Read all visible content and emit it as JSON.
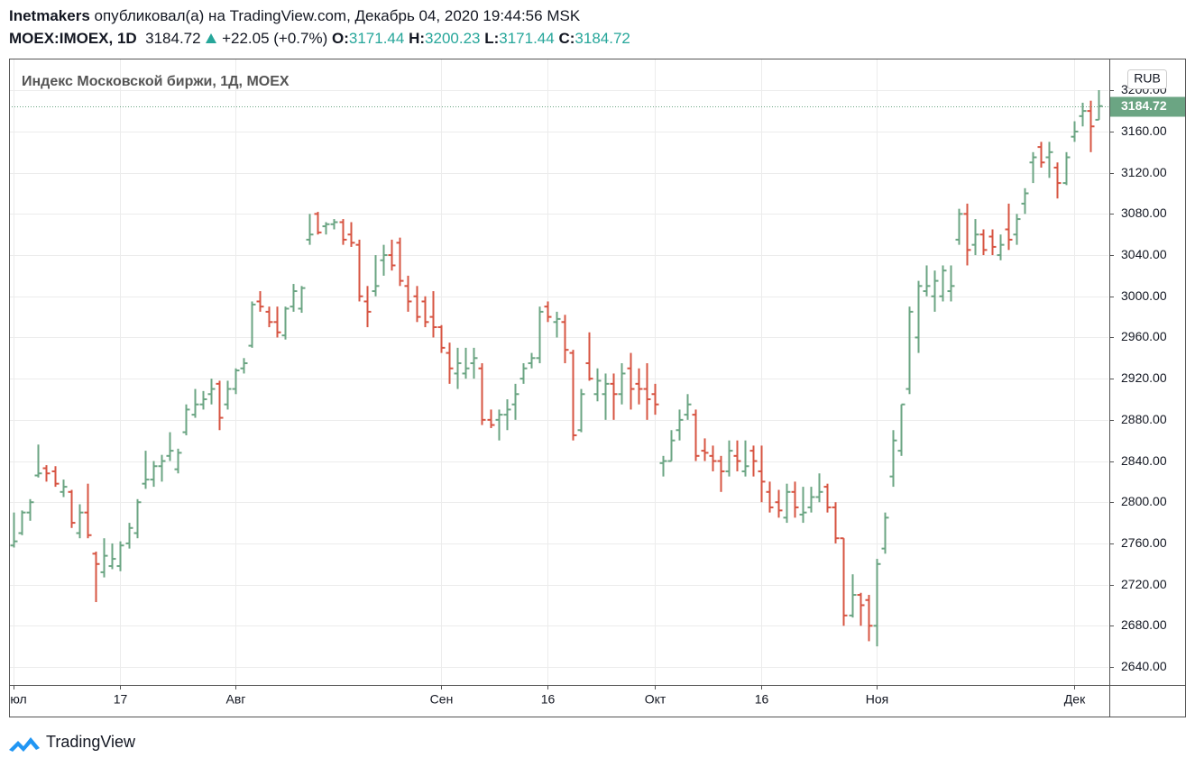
{
  "header": {
    "author": "Inetmakers",
    "published": "опубликовал(а) на TradingView.com, Декабрь 04, 2020 19:44:56 MSK",
    "symbol": "MOEX:IMOEX, 1D",
    "last": "3184.72",
    "change": "+22.05 (+0.7%)",
    "o_label": "O:",
    "o": "3171.44",
    "h_label": "H:",
    "h": "3200.23",
    "l_label": "L:",
    "l": "3171.44",
    "c_label": "C:",
    "c": "3184.72"
  },
  "footer": {
    "brand": "TradingView"
  },
  "chart_data": {
    "type": "ohlc",
    "title": "Индекс Московской биржи, 1Д, MOEX",
    "currency": "RUB",
    "up_color": "#6ba583",
    "down_color": "#d75442",
    "grid": true,
    "ylim": [
      2622.5,
      3230
    ],
    "yticks": [
      {
        "value": 2640,
        "label": "2640.00"
      },
      {
        "value": 2680,
        "label": "2680.00"
      },
      {
        "value": 2720,
        "label": "2720.00"
      },
      {
        "value": 2760,
        "label": "2760.00"
      },
      {
        "value": 2800,
        "label": "2800.00"
      },
      {
        "value": 2840,
        "label": "2840.00"
      },
      {
        "value": 2880,
        "label": "2880.00"
      },
      {
        "value": 2920,
        "label": "2920.00"
      },
      {
        "value": 2960,
        "label": "2960.00"
      },
      {
        "value": 3000,
        "label": "3000.00"
      },
      {
        "value": 3040,
        "label": "3040.00"
      },
      {
        "value": 3080,
        "label": "3080.00"
      },
      {
        "value": 3120,
        "label": "3120.00"
      },
      {
        "value": 3160,
        "label": "3160.00"
      },
      {
        "value": 3200,
        "label": "3200.00"
      }
    ],
    "categories": [
      "Июл",
      null,
      null,
      null,
      null,
      null,
      null,
      null,
      null,
      null,
      null,
      null,
      null,
      "17",
      null,
      null,
      null,
      null,
      null,
      null,
      null,
      null,
      null,
      null,
      null,
      null,
      null,
      "Авг",
      null,
      null,
      null,
      null,
      null,
      null,
      null,
      null,
      null,
      null,
      null,
      null,
      null,
      null,
      null,
      null,
      null,
      null,
      null,
      null,
      null,
      null,
      null,
      null,
      "Сен",
      null,
      null,
      null,
      null,
      null,
      null,
      null,
      null,
      null,
      null,
      null,
      null,
      "16",
      null,
      null,
      null,
      null,
      null,
      null,
      null,
      null,
      null,
      null,
      null,
      null,
      "Окт",
      null,
      null,
      null,
      null,
      null,
      null,
      null,
      null,
      null,
      null,
      null,
      null,
      "16",
      null,
      null,
      null,
      null,
      null,
      null,
      null,
      null,
      null,
      null,
      null,
      null,
      null,
      "Ноя",
      null,
      null,
      null,
      null,
      null,
      null,
      null,
      null,
      null,
      null,
      null,
      null,
      null,
      null,
      null,
      null,
      null,
      null,
      null,
      null,
      null,
      null,
      null,
      "Дек",
      null,
      null,
      null
    ],
    "open": [
      2758,
      2770,
      2790,
      2826,
      2833,
      2830,
      2810,
      2810,
      2770,
      2790,
      2750,
      2732,
      2738,
      2738,
      2760,
      2770,
      2818,
      2822,
      2835,
      2845,
      2832,
      2868,
      2885,
      2895,
      2905,
      2915,
      2895,
      2910,
      2930,
      2952,
      2995,
      2985,
      2975,
      2962,
      2990,
      2988,
      3055,
      3080,
      3068,
      3070,
      3072,
      3060,
      3050,
      2995,
      3005,
      3035,
      3040,
      3052,
      3010,
      3000,
      2995,
      2980,
      2970,
      2945,
      2925,
      2925,
      2935,
      2930,
      2880,
      2880,
      2885,
      2895,
      2920,
      2935,
      2940,
      2990,
      2975,
      2975,
      2945,
      2870,
      2935,
      2905,
      2905,
      2915,
      2905,
      2930,
      2915,
      2910,
      2905,
      2838,
      2840,
      2870,
      2885,
      2885,
      2850,
      2845,
      2840,
      2830,
      2845,
      2830,
      2850,
      2830,
      2810,
      2800,
      2785,
      2810,
      2788,
      2795,
      2805,
      2815,
      2795,
      2765,
      2690,
      2710,
      2705,
      2680,
      2755,
      2825,
      2850,
      2910,
      2960,
      3005,
      3000,
      3000,
      3005,
      3055,
      3080,
      3050,
      3060,
      3058,
      3040,
      3065,
      3060,
      3090,
      3130,
      3145,
      3135,
      3125,
      3110,
      3155,
      3175,
      3180,
      3171.44
    ],
    "high": [
      2790,
      2792,
      2803,
      2856,
      2836,
      2835,
      2822,
      2812,
      2798,
      2818,
      2752,
      2765,
      2760,
      2762,
      2780,
      2803,
      2850,
      2840,
      2846,
      2868,
      2852,
      2895,
      2910,
      2908,
      2920,
      2918,
      2918,
      2930,
      2940,
      2995,
      3005,
      2990,
      2990,
      2990,
      3012,
      3010,
      3080,
      3082,
      3072,
      3075,
      3075,
      3072,
      3055,
      3010,
      3040,
      3050,
      3055,
      3057,
      3020,
      3010,
      3000,
      3005,
      2972,
      2955,
      2950,
      2950,
      2950,
      2935,
      2890,
      2890,
      2900,
      2915,
      2935,
      2945,
      2990,
      2995,
      2985,
      2982,
      2948,
      2910,
      2965,
      2930,
      2925,
      2925,
      2935,
      2945,
      2930,
      2935,
      2915,
      2845,
      2870,
      2890,
      2905,
      2890,
      2862,
      2855,
      2845,
      2860,
      2860,
      2860,
      2855,
      2855,
      2820,
      2812,
      2818,
      2820,
      2815,
      2815,
      2828,
      2818,
      2800,
      2765,
      2730,
      2712,
      2710,
      2745,
      2790,
      2870,
      2895,
      2990,
      3015,
      3030,
      3025,
      3030,
      3030,
      3085,
      3090,
      3075,
      3065,
      3065,
      3060,
      3090,
      3080,
      3105,
      3140,
      3150,
      3150,
      3130,
      3140,
      3170,
      3188,
      3190,
      3200.23
    ],
    "low": [
      2756,
      2768,
      2782,
      2824,
      2820,
      2815,
      2805,
      2775,
      2765,
      2765,
      2703,
      2727,
      2735,
      2733,
      2755,
      2765,
      2813,
      2815,
      2820,
      2840,
      2828,
      2865,
      2882,
      2890,
      2895,
      2870,
      2890,
      2905,
      2925,
      2950,
      2985,
      2970,
      2960,
      2958,
      2985,
      2984,
      3050,
      3060,
      3060,
      3065,
      3050,
      3048,
      2995,
      2970,
      3000,
      3020,
      3025,
      3010,
      2985,
      2975,
      2970,
      2960,
      2945,
      2915,
      2910,
      2920,
      2920,
      2875,
      2872,
      2860,
      2870,
      2880,
      2915,
      2930,
      2935,
      2975,
      2960,
      2935,
      2860,
      2868,
      2918,
      2898,
      2880,
      2880,
      2895,
      2890,
      2895,
      2880,
      2885,
      2825,
      2840,
      2860,
      2880,
      2840,
      2840,
      2830,
      2810,
      2825,
      2830,
      2825,
      2825,
      2800,
      2790,
      2785,
      2780,
      2785,
      2780,
      2790,
      2800,
      2790,
      2760,
      2680,
      2688,
      2680,
      2665,
      2660,
      2750,
      2815,
      2845,
      2905,
      2945,
      3000,
      2985,
      2995,
      2995,
      3050,
      3030,
      3040,
      3040,
      3040,
      3035,
      3045,
      3050,
      3080,
      3110,
      3125,
      3115,
      3095,
      3108,
      3150,
      3165,
      3140,
      3171.44
    ],
    "close": [
      2762,
      2790,
      2800,
      2828,
      2828,
      2818,
      2815,
      2780,
      2790,
      2768,
      2740,
      2748,
      2745,
      2758,
      2775,
      2800,
      2822,
      2835,
      2840,
      2850,
      2848,
      2890,
      2895,
      2900,
      2910,
      2882,
      2910,
      2928,
      2935,
      2992,
      2990,
      2975,
      2965,
      2988,
      3005,
      3008,
      3060,
      3062,
      3070,
      3072,
      3055,
      3052,
      3000,
      2985,
      3010,
      3040,
      3030,
      3015,
      2995,
      2980,
      2975,
      2970,
      2950,
      2930,
      2935,
      2930,
      2940,
      2880,
      2875,
      2885,
      2890,
      2905,
      2930,
      2940,
      2985,
      2980,
      2978,
      2948,
      2865,
      2905,
      2920,
      2918,
      2915,
      2905,
      2925,
      2910,
      2910,
      2900,
      2895,
      2840,
      2860,
      2880,
      2895,
      2845,
      2848,
      2840,
      2830,
      2850,
      2840,
      2835,
      2840,
      2820,
      2795,
      2792,
      2810,
      2795,
      2790,
      2805,
      2810,
      2795,
      2765,
      2690,
      2710,
      2700,
      2680,
      2740,
      2785,
      2860,
      2895,
      2985,
      3010,
      3010,
      3015,
      3025,
      3010,
      3080,
      3045,
      3060,
      3045,
      3048,
      3050,
      3055,
      3075,
      3100,
      3135,
      3130,
      3140,
      3110,
      3135,
      3160,
      3180,
      3165,
      3184.72
    ]
  }
}
